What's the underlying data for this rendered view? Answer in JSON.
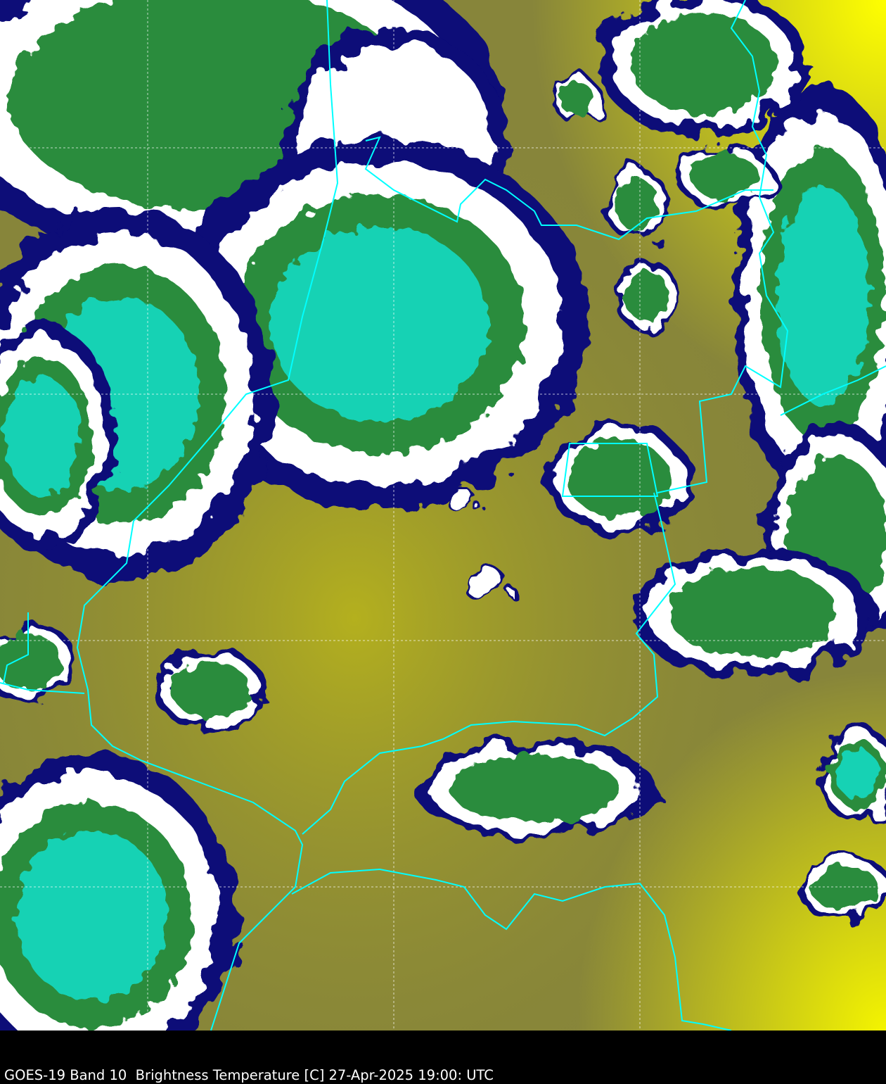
{
  "caption": "GOES-19 Band 10  Brightness Temperature [C] 27-Apr-2025 19:00: UTC",
  "map": {
    "satellite": "GOES-19",
    "band": "Band 10",
    "quantity": "Brightness Temperature [C]",
    "colors": {
      "warm_surface": "#8c8a32",
      "hot_surface": "#f0f000",
      "cloud_edge": "#0a0a78",
      "cloud_mid": "#ffffff",
      "cloud_cold": "#2a8c3c",
      "cloud_coldest": "#19d2b4",
      "border_lines": "#00ffff",
      "grid_lines": "#ffffff"
    },
    "gridlines": "dashed",
    "borders": "political boundaries"
  }
}
